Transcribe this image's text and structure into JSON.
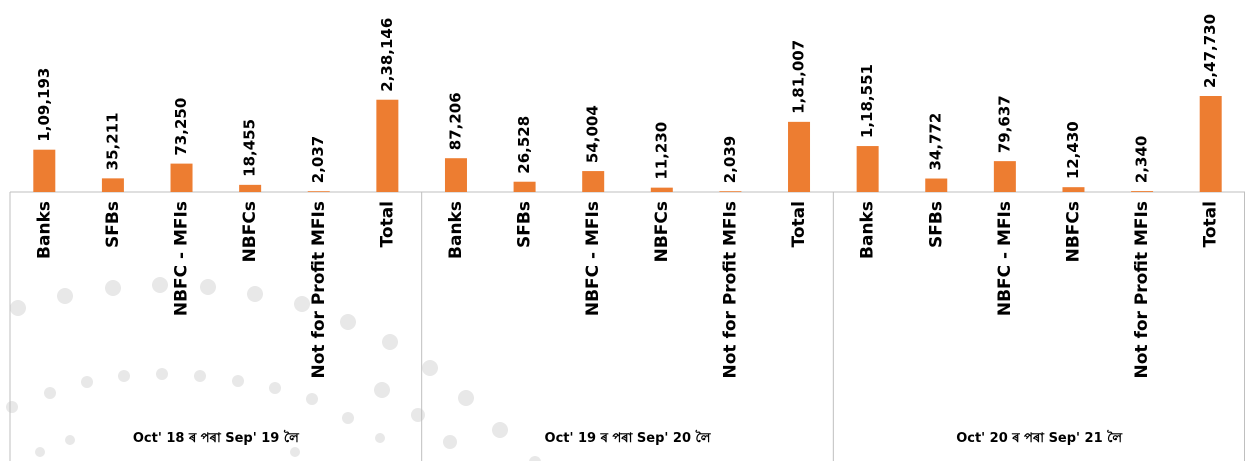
{
  "chart_data": {
    "type": "bar",
    "color": "#ed7d31",
    "groups": [
      {
        "name": "Oct' 18 ৰ পৰা Sep' 19 লৈ",
        "categories": [
          "Banks",
          "SFBs",
          "NBFC - MFIs",
          "NBFCs",
          "Not for Profit MFIs",
          "Total"
        ],
        "values": [
          109193,
          35211,
          73250,
          18455,
          2037,
          238146
        ],
        "value_labels": [
          "1,09,193",
          "35,211",
          "73,250",
          "18,455",
          "2,037",
          "2,38,146"
        ]
      },
      {
        "name": "Oct' 19 ৰ পৰা Sep' 20 লৈ",
        "categories": [
          "Banks",
          "SFBs",
          "NBFC - MFIs",
          "NBFCs",
          "Not for Profit MFIs",
          "Total"
        ],
        "values": [
          87206,
          26528,
          54004,
          11230,
          2039,
          181007
        ],
        "value_labels": [
          "87,206",
          "26,528",
          "54,004",
          "11,230",
          "2,039",
          "1,81,007"
        ]
      },
      {
        "name": "Oct' 20 ৰ পৰা Sep' 21 লৈ",
        "categories": [
          "Banks",
          "SFBs",
          "NBFC - MFIs",
          "NBFCs",
          "Not for Profit MFIs",
          "Total"
        ],
        "values": [
          118551,
          34772,
          79637,
          12430,
          2340,
          247730
        ],
        "value_labels": [
          "1,18,551",
          "34,772",
          "79,637",
          "12,430",
          "2,340",
          "2,47,730"
        ]
      }
    ]
  }
}
